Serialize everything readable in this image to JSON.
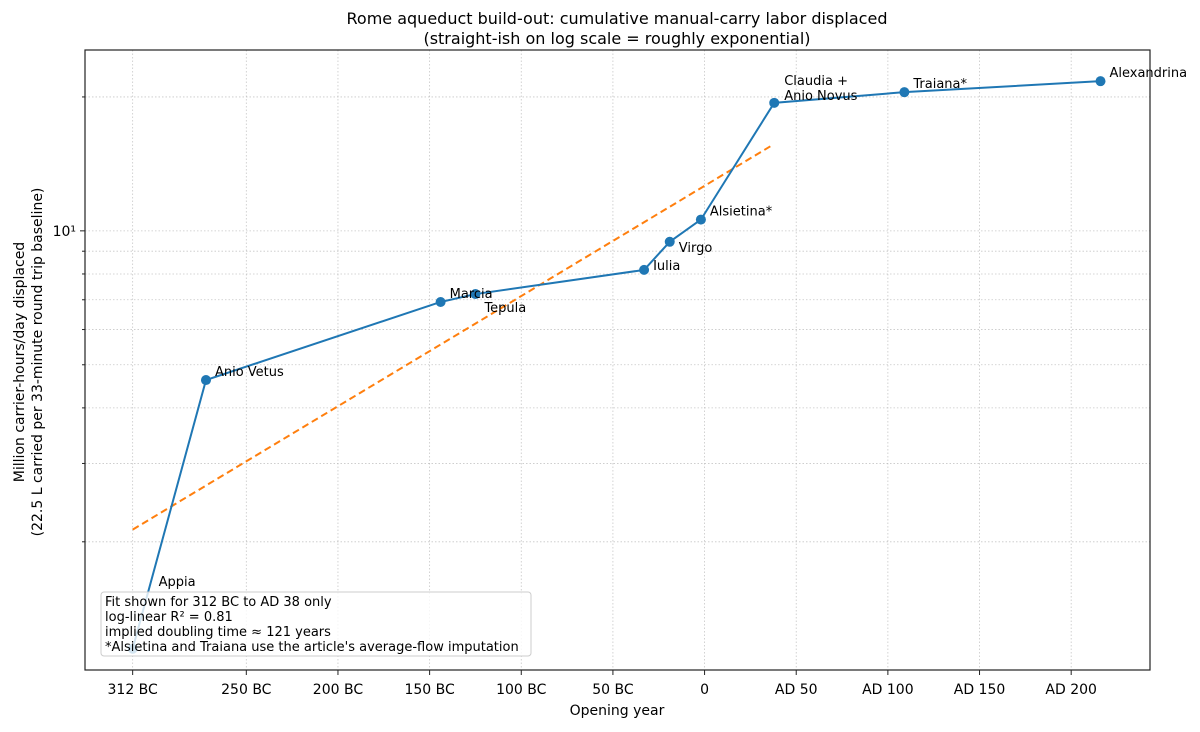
{
  "chart_data": {
    "type": "line",
    "title": "Rome aqueduct build-out: cumulative manual-carry labor displaced",
    "subtitle": "(straight-ish on log scale = roughly exponential)",
    "xlabel": "Opening year",
    "ylabel": "Million carrier-hours/day displaced",
    "ylabel2": "(22.5 L carried per 33-minute round trip baseline)",
    "yscale": "log",
    "xlim": [
      -338,
      243
    ],
    "ylim": [
      1.03,
      25.5
    ],
    "grid": true,
    "x_ticks": [
      {
        "value": -312,
        "label": "312 BC"
      },
      {
        "value": -250,
        "label": "250 BC"
      },
      {
        "value": -200,
        "label": "200 BC"
      },
      {
        "value": -150,
        "label": "150 BC"
      },
      {
        "value": -100,
        "label": "100 BC"
      },
      {
        "value": -50,
        "label": "50 BC"
      },
      {
        "value": 0,
        "label": "0"
      },
      {
        "value": 50,
        "label": "AD 50"
      },
      {
        "value": 100,
        "label": "AD 100"
      },
      {
        "value": 150,
        "label": "AD 150"
      },
      {
        "value": 200,
        "label": "AD 200"
      }
    ],
    "y_major_tick": {
      "value": 10,
      "label": "10¹"
    },
    "series": [
      {
        "color": "#1f77b4",
        "style": "solid-markers",
        "points": [
          {
            "x": -312,
            "y": 1.15,
            "label": "Appia"
          },
          {
            "x": -272,
            "y": 4.62,
            "label": "Anio Vetus"
          },
          {
            "x": -144,
            "y": 6.92,
            "label": "Marcia"
          },
          {
            "x": -125,
            "y": 7.21,
            "label": "Tepula"
          },
          {
            "x": -33,
            "y": 8.17,
            "label": "Iulia"
          },
          {
            "x": -19,
            "y": 9.45,
            "label": "Virgo"
          },
          {
            "x": -2,
            "y": 10.6,
            "label": "Alsietina*"
          },
          {
            "x": 38,
            "y": 19.4,
            "label": "Claudia +\nAnio Novus"
          },
          {
            "x": 109,
            "y": 20.5,
            "label": "Traiana*"
          },
          {
            "x": 216,
            "y": 21.7,
            "label": "Alexandrina"
          }
        ]
      },
      {
        "color": "#ff7f0e",
        "style": "dashed",
        "points": [
          {
            "x": -312,
            "y": 2.13
          },
          {
            "x": 36,
            "y": 15.5
          }
        ]
      }
    ],
    "annotation": [
      "Fit shown for 312 BC to AD 38 only",
      "log-linear R² = 0.81",
      "implied doubling time ≈ 121 years",
      "*Alsietina and Traiana use the article's average-flow imputation"
    ]
  }
}
